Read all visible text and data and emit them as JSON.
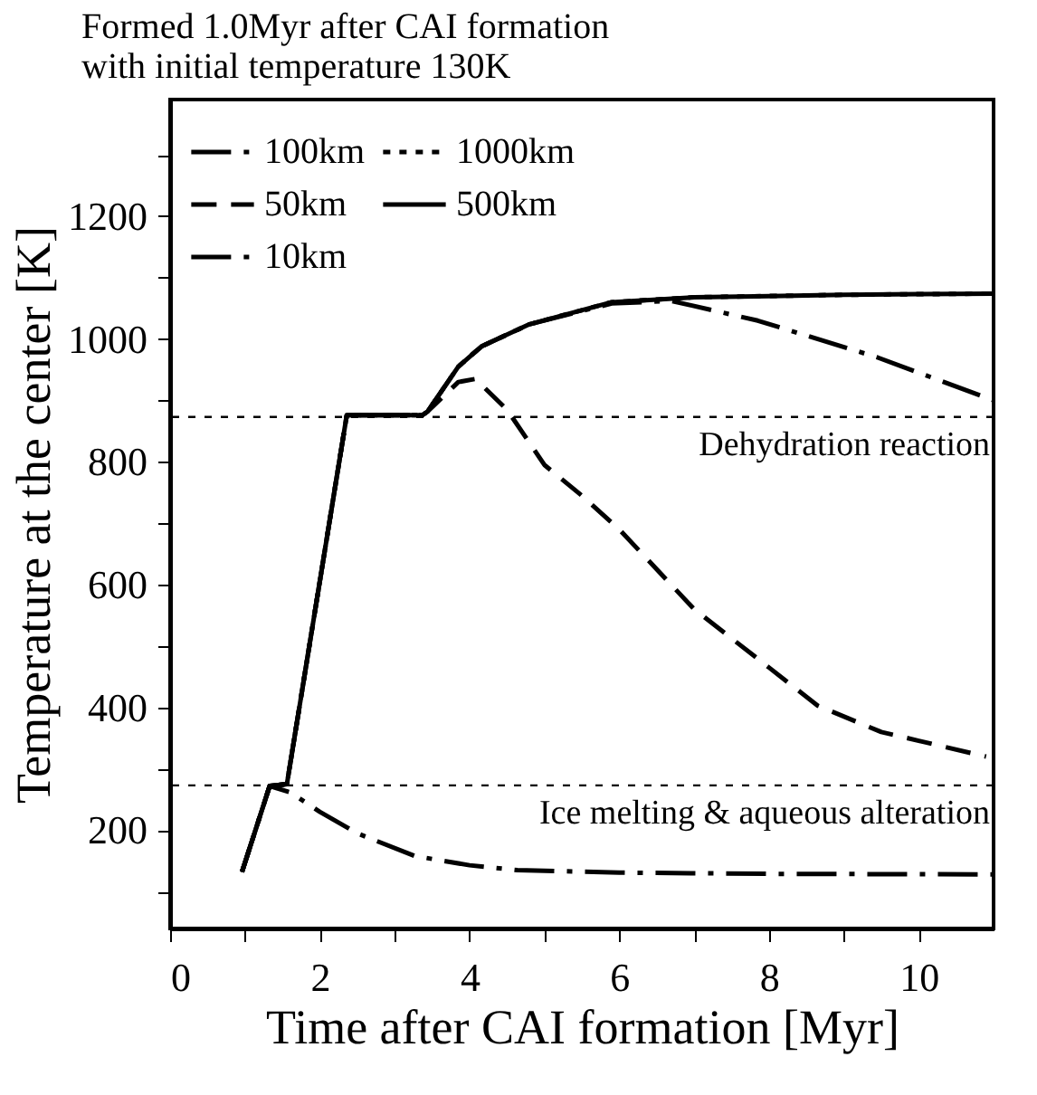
{
  "chart_data": {
    "type": "line",
    "title": "Formed 1.0Myr after CAI formation",
    "subtitle": "with initial temperature 130K",
    "xlabel": "Time after CAI formation [Myr]",
    "ylabel": "Temperature at the center [K]",
    "xlim": [
      0,
      11
    ],
    "ylim": [
      40,
      1390
    ],
    "xticks": [
      0,
      {
        "value": 1,
        "label": null
      },
      2,
      {
        "value": 3,
        "label": null
      },
      4,
      {
        "value": 5,
        "label": null
      },
      6,
      {
        "value": 7,
        "label": null
      },
      8,
      {
        "value": 9,
        "label": null
      },
      10
    ],
    "yticks": [
      {
        "value": 100,
        "label": null
      },
      200,
      {
        "value": 300,
        "label": null
      },
      400,
      {
        "value": 500,
        "label": null
      },
      600,
      {
        "value": 700,
        "label": null
      },
      800,
      {
        "value": 900,
        "label": null
      },
      1000,
      {
        "value": 1100,
        "label": null
      },
      1200,
      {
        "value": 1300,
        "label": null
      }
    ],
    "grid": false,
    "legend": "top",
    "marker": "none",
    "series": [
      {
        "name": "100km",
        "color": "#000000",
        "line_style": "dashdot",
        "x": [
          0.96,
          1.33,
          1.56,
          2.36,
          3.37,
          3.44,
          3.85,
          4.16,
          4.8,
          5.9,
          6.7,
          7.85,
          9.45,
          11
        ],
        "values": [
          132,
          272,
          275,
          876,
          876,
          882,
          955,
          988,
          1024,
          1058,
          1062,
          1030,
          970,
          900
        ]
      },
      {
        "name": "1000km",
        "color": "#000000",
        "line_style": "dotted",
        "x": [
          0.96,
          1.33,
          1.56,
          2.36,
          3.37,
          3.44,
          3.85,
          4.16,
          4.8,
          5.9,
          7,
          8,
          9,
          10,
          11
        ],
        "values": [
          132,
          272,
          275,
          876,
          876,
          882,
          955,
          988,
          1024,
          1060,
          1068,
          1070,
          1072,
          1073,
          1074
        ]
      },
      {
        "name": "50km",
        "color": "#000000",
        "line_style": "dashed",
        "x": [
          0.96,
          1.33,
          1.56,
          2.36,
          3.37,
          3.44,
          3.85,
          4.08,
          4.5,
          5,
          5.5,
          6,
          7,
          8,
          8.65,
          9.5,
          10.9
        ],
        "values": [
          132,
          272,
          275,
          876,
          876,
          882,
          930,
          935,
          885,
          795,
          745,
          690,
          560,
          465,
          403,
          360,
          320
        ]
      },
      {
        "name": "500km",
        "color": "#000000",
        "line_style": "solid",
        "x": [
          0.96,
          1.33,
          1.56,
          2.36,
          3.37,
          3.44,
          3.85,
          4.16,
          4.8,
          5.9,
          7,
          8,
          9,
          10,
          11
        ],
        "values": [
          132,
          272,
          275,
          876,
          876,
          882,
          955,
          988,
          1024,
          1060,
          1068,
          1070,
          1072,
          1073,
          1074
        ]
      },
      {
        "name": "10km",
        "color": "#000000",
        "line_style": "dashdot",
        "x": [
          0.96,
          1.33,
          1.6,
          2,
          2.5,
          3.27,
          4,
          4.64,
          6,
          8,
          11
        ],
        "values": [
          132,
          272,
          262,
          230,
          195,
          158,
          143,
          135,
          131,
          129,
          128
        ]
      }
    ],
    "ref_lines": [
      {
        "axis": "y",
        "value": 873,
        "label": "Dehydration reaction",
        "line_style": "dotted",
        "color": "#000000"
      },
      {
        "axis": "y",
        "value": 273,
        "label": "Ice melting & aqueous alteration",
        "line_style": "dotted",
        "color": "#000000"
      }
    ]
  }
}
